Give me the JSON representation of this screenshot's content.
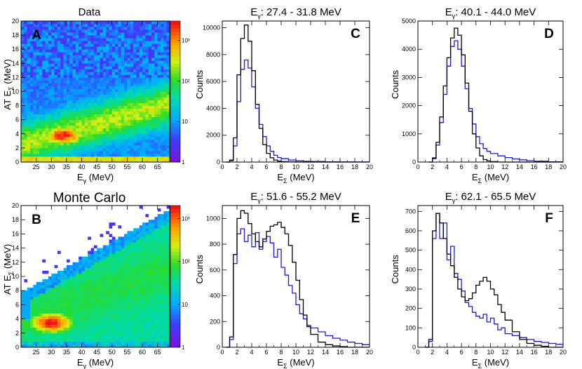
{
  "chart_data": [
    {
      "id": "A",
      "type": "heatmap",
      "letter": "A",
      "title": "Data",
      "xlabel": "E",
      "xlabel_sub": "γ",
      "xlabel_unit": " (MeV)",
      "ylabel": "AT E",
      "ylabel_sub": "Σ",
      "ylabel_unit": " (MeV)",
      "xlim": [
        20,
        69
      ],
      "ylim": [
        0,
        20
      ],
      "xticks": [
        25,
        30,
        35,
        40,
        45,
        50,
        55,
        60,
        65
      ],
      "yticks": [
        0,
        2,
        4,
        6,
        8,
        10,
        12,
        14,
        16,
        18,
        20
      ],
      "colorbar_ticks": [
        "1",
        "10",
        "10²",
        "10³"
      ],
      "colorbar_range": [
        1,
        3000
      ]
    },
    {
      "id": "B",
      "type": "heatmap",
      "letter": "B",
      "title": "Monte Carlo",
      "xlabel": "E",
      "xlabel_sub": "γ",
      "xlabel_unit": " (MeV)",
      "ylabel": "AT E",
      "ylabel_sub": "Σ",
      "ylabel_unit": " (MeV)",
      "xlim": [
        20,
        69
      ],
      "ylim": [
        0,
        20
      ],
      "xticks": [
        25,
        30,
        35,
        40,
        45,
        50,
        55,
        60,
        65
      ],
      "yticks": [
        0,
        2,
        4,
        6,
        8,
        10,
        12,
        14,
        16,
        18,
        20
      ],
      "colorbar_ticks": [
        "1",
        "10",
        "10²",
        "10³"
      ],
      "colorbar_range": [
        1,
        2000
      ]
    },
    {
      "id": "C",
      "type": "line",
      "letter": "C",
      "title": "E",
      "title_sub": "γ",
      "title_range": ": 27.4 - 31.8 MeV",
      "xlabel": "E",
      "xlabel_sub": "Σ",
      "xlabel_unit": " (MeV)",
      "ylabel": "Counts",
      "xlim": [
        0,
        20
      ],
      "ylim": [
        0,
        10500
      ],
      "xticks": [
        0,
        2,
        4,
        6,
        8,
        10,
        12,
        14,
        16,
        18,
        20
      ],
      "yticks": [
        0,
        2000,
        4000,
        6000,
        8000,
        10000
      ],
      "series": [
        {
          "name": "Data",
          "color": "#1a1adb",
          "x": [
            0.5,
            1,
            1.5,
            2,
            2.5,
            3,
            3.5,
            4,
            4.5,
            5,
            5.5,
            6,
            6.5,
            7,
            7.5,
            8,
            9,
            10,
            11,
            12,
            14,
            16,
            18,
            20
          ],
          "values": [
            0,
            100,
            1200,
            4500,
            6900,
            7600,
            7000,
            5600,
            4000,
            2800,
            1900,
            1200,
            800,
            500,
            340,
            250,
            150,
            90,
            60,
            40,
            20,
            10,
            5,
            0
          ]
        },
        {
          "name": "Monte Carlo",
          "color": "#000000",
          "x": [
            0.5,
            1,
            1.5,
            2,
            2.5,
            3,
            3.5,
            4,
            4.5,
            5,
            5.5,
            6,
            6.5,
            7,
            7.5,
            8,
            9,
            10,
            11,
            12,
            14,
            16,
            18,
            20
          ],
          "values": [
            0,
            150,
            1800,
            6500,
            9200,
            10200,
            9000,
            6800,
            4300,
            2500,
            1300,
            650,
            320,
            150,
            70,
            30,
            10,
            0,
            0,
            0,
            0,
            0,
            0,
            0
          ]
        }
      ]
    },
    {
      "id": "D",
      "type": "line",
      "letter": "D",
      "title": "E",
      "title_sub": "γ",
      "title_range": ": 40.1 - 44.0 MeV",
      "xlabel": "E",
      "xlabel_sub": "Σ",
      "xlabel_unit": " (MeV)",
      "ylabel": "Counts",
      "xlim": [
        0,
        20
      ],
      "ylim": [
        0,
        5000
      ],
      "xticks": [
        0,
        2,
        4,
        6,
        8,
        10,
        12,
        14,
        16,
        18,
        20
      ],
      "yticks": [
        0,
        1000,
        2000,
        3000,
        4000,
        5000
      ],
      "series": [
        {
          "name": "Data",
          "color": "#1a1adb",
          "x": [
            1.5,
            2,
            2.5,
            3,
            3.5,
            4,
            4.5,
            5,
            5.5,
            6,
            6.5,
            7,
            7.5,
            8,
            8.5,
            9,
            9.5,
            10,
            11,
            12,
            13,
            14,
            15,
            16,
            18,
            20
          ],
          "values": [
            0,
            120,
            600,
            1400,
            2400,
            3400,
            4100,
            4300,
            4000,
            3400,
            2600,
            1900,
            1350,
            900,
            650,
            480,
            380,
            300,
            220,
            160,
            110,
            80,
            50,
            30,
            10,
            0
          ]
        },
        {
          "name": "Monte Carlo",
          "color": "#000000",
          "x": [
            1.5,
            2,
            2.5,
            3,
            3.5,
            4,
            4.5,
            5,
            5.5,
            6,
            6.5,
            7,
            7.5,
            8,
            8.5,
            9,
            9.5,
            10,
            11,
            12,
            13,
            14,
            15,
            16,
            18,
            20
          ],
          "values": [
            0,
            150,
            700,
            1600,
            2700,
            3700,
            4400,
            4750,
            4500,
            3800,
            2800,
            1800,
            1000,
            500,
            220,
            90,
            40,
            15,
            0,
            0,
            0,
            0,
            0,
            0,
            0,
            0
          ]
        }
      ]
    },
    {
      "id": "E",
      "type": "line",
      "letter": "E",
      "title": "E",
      "title_sub": "γ",
      "title_range": ": 51.6 - 55.2 MeV",
      "xlabel": "E",
      "xlabel_sub": "Σ",
      "xlabel_unit": " (MeV)",
      "ylabel": "Counts",
      "xlim": [
        0,
        20
      ],
      "ylim": [
        0,
        1100
      ],
      "xticks": [
        0,
        2,
        4,
        6,
        8,
        10,
        12,
        14,
        16,
        18,
        20
      ],
      "yticks": [
        0,
        200,
        400,
        600,
        800,
        1000
      ],
      "series": [
        {
          "name": "Data",
          "color": "#1a1adb",
          "x": [
            0.5,
            1,
            1.5,
            2,
            2.5,
            3,
            3.5,
            4,
            4.5,
            5,
            5.5,
            6,
            6.5,
            7,
            7.5,
            8,
            8.5,
            9,
            9.5,
            10,
            10.5,
            11,
            11.5,
            12,
            13,
            14,
            15,
            16,
            17,
            18,
            19,
            20
          ],
          "values": [
            0,
            60,
            650,
            880,
            920,
            820,
            870,
            780,
            890,
            760,
            820,
            860,
            810,
            700,
            760,
            620,
            560,
            480,
            420,
            330,
            260,
            220,
            170,
            150,
            120,
            90,
            70,
            55,
            40,
            30,
            20,
            0
          ]
        },
        {
          "name": "Monte Carlo",
          "color": "#000000",
          "x": [
            0.5,
            1,
            1.5,
            2,
            2.5,
            3,
            3.5,
            4,
            4.5,
            5,
            5.5,
            6,
            6.5,
            7,
            7.5,
            8,
            8.5,
            9,
            9.5,
            10,
            10.5,
            11,
            11.5,
            12,
            13,
            14,
            15,
            16,
            17,
            18,
            19,
            20
          ],
          "values": [
            0,
            80,
            720,
            1000,
            1060,
            1040,
            960,
            880,
            820,
            780,
            840,
            900,
            940,
            950,
            970,
            930,
            880,
            790,
            660,
            520,
            370,
            250,
            160,
            100,
            40,
            20,
            10,
            5,
            0,
            0,
            0,
            0
          ]
        }
      ]
    },
    {
      "id": "F",
      "type": "line",
      "letter": "F",
      "title": "E",
      "title_sub": "γ",
      "title_range": ": 62.1 - 65.5 MeV",
      "xlabel": "E",
      "xlabel_sub": "Σ",
      "xlabel_unit": " (MeV)",
      "ylabel": "Counts",
      "xlim": [
        0,
        20
      ],
      "ylim": [
        0,
        730
      ],
      "xticks": [
        0,
        2,
        4,
        6,
        8,
        10,
        12,
        14,
        16,
        18,
        20
      ],
      "yticks": [
        0,
        100,
        200,
        300,
        400,
        500,
        600,
        700
      ],
      "series": [
        {
          "name": "Data",
          "color": "#1a1adb",
          "x": [
            1,
            1.5,
            2,
            2.5,
            3,
            3.5,
            4,
            4.5,
            5,
            5.5,
            6,
            6.5,
            7,
            7.5,
            8,
            8.5,
            9,
            9.5,
            10,
            10.5,
            11,
            11.5,
            12,
            13,
            14,
            15,
            16,
            17,
            18,
            19,
            20
          ],
          "values": [
            0,
            30,
            560,
            690,
            560,
            640,
            450,
            520,
            380,
            350,
            290,
            230,
            210,
            180,
            160,
            150,
            170,
            130,
            150,
            120,
            90,
            100,
            70,
            60,
            50,
            40,
            30,
            25,
            20,
            15,
            0
          ]
        },
        {
          "name": "Monte Carlo",
          "color": "#000000",
          "x": [
            1,
            1.5,
            2,
            2.5,
            3,
            3.5,
            4,
            4.5,
            5,
            5.5,
            6,
            6.5,
            7,
            7.5,
            8,
            8.5,
            9,
            9.5,
            10,
            10.5,
            11,
            11.5,
            12,
            13,
            14,
            15,
            16,
            17,
            18,
            19,
            20
          ],
          "values": [
            0,
            40,
            600,
            690,
            640,
            560,
            480,
            420,
            360,
            300,
            260,
            240,
            250,
            280,
            320,
            340,
            360,
            340,
            300,
            270,
            220,
            180,
            140,
            80,
            40,
            20,
            10,
            5,
            0,
            0,
            0
          ]
        }
      ]
    }
  ]
}
